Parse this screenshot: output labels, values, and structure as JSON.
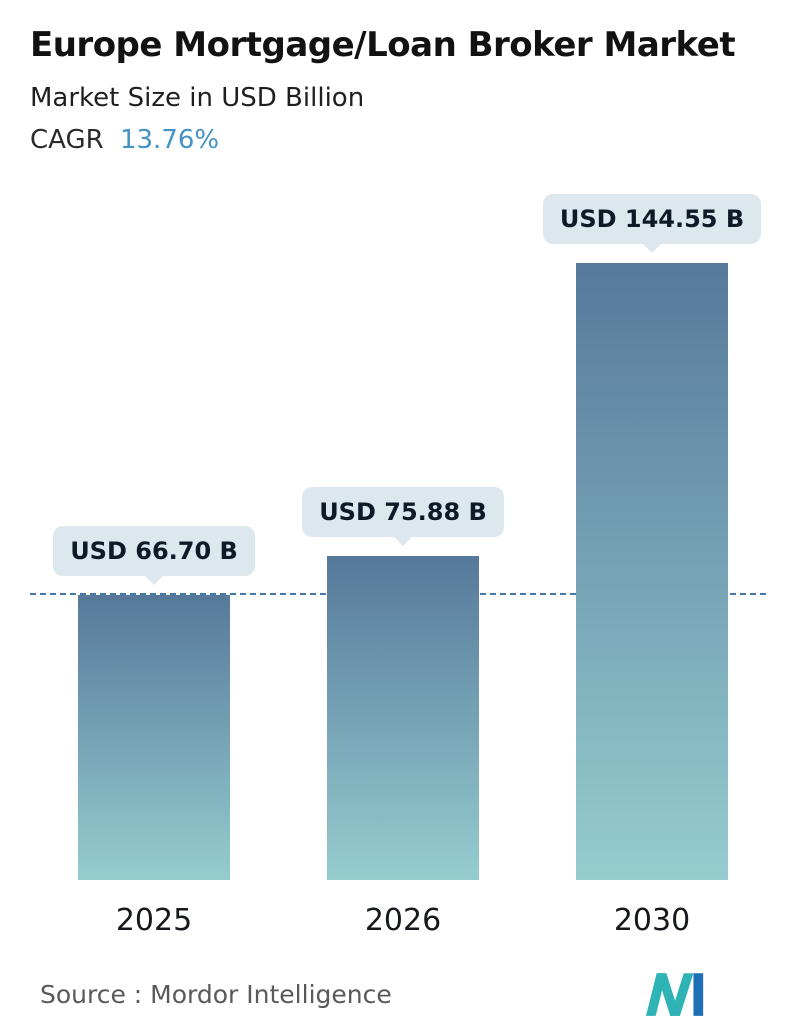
{
  "chart_data": {
    "type": "bar",
    "title": "Europe Mortgage/Loan Broker Market",
    "subtitle": "Market Size in USD Billion",
    "cagr_label": "CAGR",
    "cagr_value": "13.76%",
    "categories": [
      "2025",
      "2026",
      "2030"
    ],
    "values": [
      66.7,
      75.88,
      144.55
    ],
    "value_labels": [
      "USD 66.70 B",
      "USD 75.88 B",
      "USD 144.55 B"
    ],
    "unit": "USD Billion",
    "xlabel": "",
    "ylabel": "",
    "ylim": [
      0,
      144.55
    ],
    "reference_line": {
      "value": 66.7,
      "style": "dashed"
    },
    "legend": "none",
    "grid": "off"
  },
  "colors": {
    "accent": "#4593c6",
    "title_text": "#121212",
    "bar_gradient_top": "#56799b",
    "bar_gradient_bottom": "#95cdcf",
    "dashed_line": "#4479a9",
    "callout_bg": "#dce8ee",
    "source_text": "#595959",
    "logo_teal": "#2fb3b5",
    "logo_blue": "#1e6fb5"
  },
  "footer": {
    "source_label": "Source :  Mordor Intelligence"
  }
}
